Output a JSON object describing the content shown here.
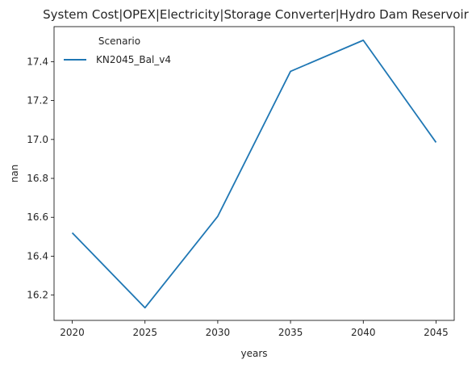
{
  "chart_data": {
    "type": "line",
    "title": "System Cost|OPEX|Electricity|Storage Converter|Hydro Dam Reservoir",
    "xlabel": "years",
    "ylabel": "nan",
    "x": [
      2020,
      2025,
      2030,
      2035,
      2040,
      2045
    ],
    "xticks": [
      "2020",
      "2025",
      "2030",
      "2035",
      "2040",
      "2045"
    ],
    "xlim": [
      2018.75,
      2046.25
    ],
    "yticks": [
      "16.2",
      "16.4",
      "16.6",
      "16.8",
      "17.0",
      "17.2",
      "17.4"
    ],
    "ylim": [
      16.07,
      17.58
    ],
    "grid": false,
    "legend": {
      "title": "Scenario",
      "placement": "top-left"
    },
    "series": [
      {
        "name": "KN2045_Bal_v4",
        "color": "#1f77b4",
        "values": [
          16.52,
          16.135,
          16.605,
          17.35,
          17.51,
          16.985
        ]
      }
    ]
  }
}
